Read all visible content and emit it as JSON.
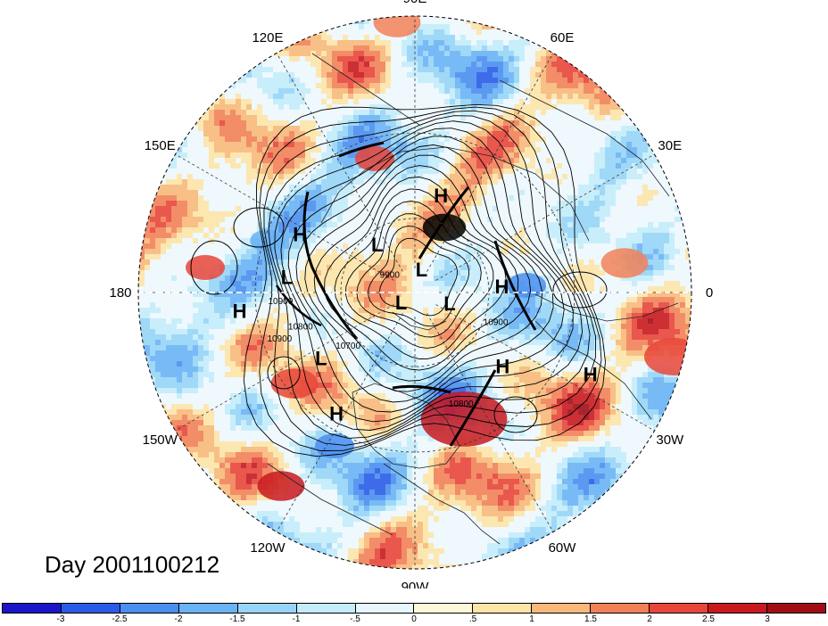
{
  "title": "Day 2001100212",
  "longitude_labels": [
    "90E",
    "60E",
    "30E",
    "0",
    "30W",
    "60W",
    "90W",
    "120W",
    "150W",
    "180",
    "150E",
    "120E"
  ],
  "pressure_centers": [
    {
      "label": "H",
      "lat": 50,
      "lon": 75
    },
    {
      "label": "L",
      "lat": 65,
      "lon": 128
    },
    {
      "label": "L",
      "lat": 80,
      "lon": 74
    },
    {
      "label": "L",
      "lat": 75,
      "lon": -17
    },
    {
      "label": "H",
      "lat": 55,
      "lon": 4
    },
    {
      "label": "L",
      "lat": 83,
      "lon": -144
    },
    {
      "label": "H",
      "lat": 40,
      "lon": 153
    },
    {
      "label": "L",
      "lat": 40,
      "lon": 173
    },
    {
      "label": "H",
      "lat": 25,
      "lon": -174
    },
    {
      "label": "L",
      "lat": 45,
      "lon": -145
    },
    {
      "label": "H",
      "lat": 35,
      "lon": -123
    },
    {
      "label": "H",
      "lat": 45,
      "lon": -40
    },
    {
      "label": "H",
      "lat": 20,
      "lon": -25
    }
  ],
  "contour_labels": [
    {
      "text": "10800",
      "lat": 43,
      "lon": -162
    },
    {
      "text": "10900",
      "lat": 38,
      "lon": -175
    },
    {
      "text": "10700",
      "lat": 55,
      "lon": -140
    },
    {
      "text": "10900",
      "lat": 35,
      "lon": -160
    },
    {
      "text": "10900",
      "lat": 55,
      "lon": -22
    },
    {
      "text": "10800",
      "lat": 42,
      "lon": -68
    },
    {
      "text": "9900",
      "lat": 78,
      "lon": 150
    }
  ],
  "colorbar": {
    "colors": [
      "#1a16c8",
      "#2a5be8",
      "#4a8ef0",
      "#6ab3f5",
      "#97d4f7",
      "#c4ecfb",
      "#e6f7fd",
      "#fef7d8",
      "#fde4a8",
      "#f8b87a",
      "#f28158",
      "#e8453a",
      "#c8191f",
      "#a00d15"
    ],
    "tick_labels": [
      "-3",
      "-2.5",
      "-2",
      "-1.5",
      "-1",
      "-.5",
      "0",
      ".5",
      "1",
      "1.5",
      "2",
      "2.5",
      "3"
    ]
  }
}
